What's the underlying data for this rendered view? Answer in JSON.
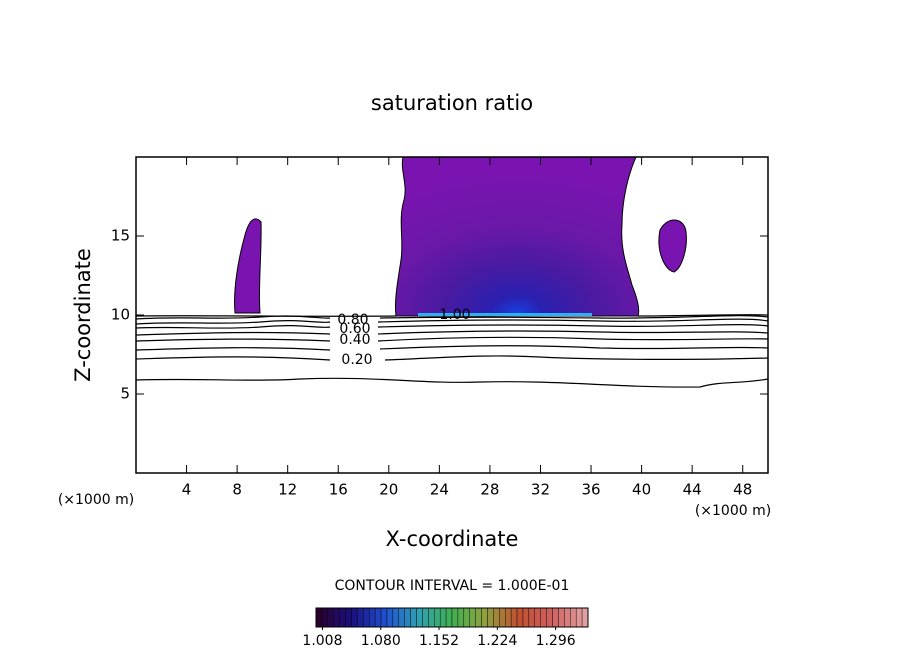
{
  "chart_data": {
    "type": "contour",
    "title": "saturation ratio",
    "x_label": "X-coordinate",
    "y_label": "Z-coordinate",
    "x_unit": "(×1000 m)",
    "x_unit_right": "(×1000 m)",
    "xlim": [
      0,
      50
    ],
    "ylim": [
      0,
      20
    ],
    "xticks": [
      4,
      8,
      12,
      16,
      20,
      24,
      28,
      32,
      36,
      40,
      44,
      48
    ],
    "yticks": [
      5,
      10,
      15
    ],
    "contour_levels": [
      {
        "value": 0.2,
        "label": "0.20"
      },
      {
        "value": 0.4,
        "label": "0.40"
      },
      {
        "value": 0.6,
        "label": "0.60"
      },
      {
        "value": 0.8,
        "label": "0.80"
      },
      {
        "value": 1.0,
        "label": "1.00"
      }
    ],
    "contour_interval_text": "CONTOUR INTERVAL = 1.000E-01",
    "colorbar_lim": [
      1.0,
      1.336
    ],
    "colorbar_ticks": [
      {
        "value": 1.008,
        "label": "1.008"
      },
      {
        "value": 1.08,
        "label": "1.080"
      },
      {
        "value": 1.152,
        "label": "1.152"
      },
      {
        "value": 1.224,
        "label": "1.224"
      },
      {
        "value": 1.296,
        "label": "1.296"
      }
    ],
    "colormap": [
      "#2a0030",
      "#1a1080",
      "#2050d0",
      "#30a0b0",
      "#40b050",
      "#90a040",
      "#c05030",
      "#d06060",
      "#e0a0a0"
    ]
  }
}
